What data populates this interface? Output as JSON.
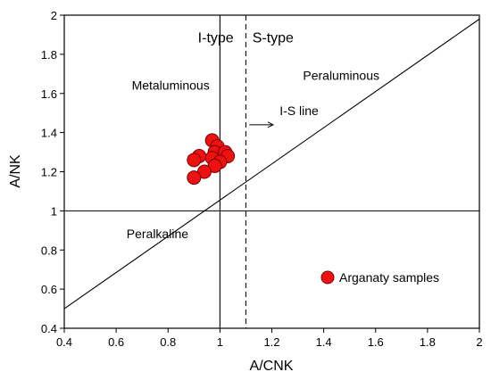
{
  "chart_data": {
    "type": "scatter",
    "xlabel": "A/CNK",
    "ylabel": "A/NK",
    "xlim": [
      0.4,
      2
    ],
    "ylim": [
      0.4,
      2
    ],
    "grid": false,
    "xticks": [
      "0.4",
      "0.6",
      "0.8",
      "1",
      "1.2",
      "1.4",
      "1.6",
      "1.8",
      "2"
    ],
    "yticks": [
      "0.4",
      "0.6",
      "0.8",
      "1",
      "1.2",
      "1.4",
      "1.6",
      "1.8",
      "2"
    ],
    "legend_position": "bottom-right",
    "series": [
      {
        "name": "Arganaty samples",
        "color": "#ee1111",
        "marker": "circle",
        "points": [
          {
            "x": 0.97,
            "y": 1.36
          },
          {
            "x": 0.99,
            "y": 1.33
          },
          {
            "x": 0.98,
            "y": 1.3
          },
          {
            "x": 1.02,
            "y": 1.3
          },
          {
            "x": 0.92,
            "y": 1.28
          },
          {
            "x": 1.03,
            "y": 1.28
          },
          {
            "x": 0.9,
            "y": 1.26
          },
          {
            "x": 0.97,
            "y": 1.27
          },
          {
            "x": 1.0,
            "y": 1.25
          },
          {
            "x": 0.98,
            "y": 1.23
          },
          {
            "x": 0.94,
            "y": 1.2
          },
          {
            "x": 0.9,
            "y": 1.17
          }
        ]
      }
    ],
    "reference_lines": [
      {
        "kind": "vertical",
        "x": 1,
        "style": "solid"
      },
      {
        "kind": "horizontal",
        "y": 1,
        "style": "solid"
      },
      {
        "kind": "vertical",
        "x": 1.1,
        "style": "dashed"
      },
      {
        "kind": "diagonal",
        "from": [
          0.4,
          0.5
        ],
        "to": [
          2,
          1.98
        ],
        "style": "solid"
      }
    ],
    "annotations": [
      {
        "text": "I-type",
        "x": 0.915,
        "y": 1.86
      },
      {
        "text": "S-type",
        "x": 1.125,
        "y": 1.86
      },
      {
        "text": "Metaluminous",
        "x": 0.66,
        "y": 1.62
      },
      {
        "text": "Peraluminous",
        "x": 1.32,
        "y": 1.67
      },
      {
        "text": "I-S line",
        "x": 1.23,
        "y": 1.49
      },
      {
        "text": "Peralkaline",
        "x": 0.64,
        "y": 0.86
      }
    ]
  }
}
